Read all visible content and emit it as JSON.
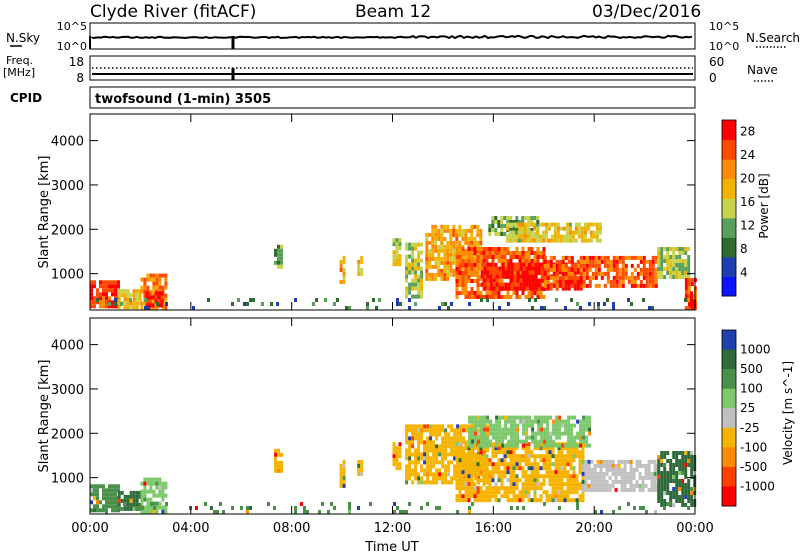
{
  "header": {
    "site": "Clyde River (fitACF)",
    "beam": "Beam 12",
    "date": "03/Dec/2016"
  },
  "status_panels": {
    "nsky_label": "N.Sky",
    "nsky_ticks": [
      "10^5",
      "10^0"
    ],
    "nsearch_label": "N.Search",
    "nsearch_ticks": [
      "10^5",
      "10^0"
    ],
    "freq_label_top": "Freq.",
    "freq_label_unit": "[MHz]",
    "freq_ticks": [
      "18",
      "8"
    ],
    "nave_label": "Nave",
    "nave_ticks": [
      "60",
      "0"
    ],
    "cpid_label": "CPID",
    "cpid_text": "twofsound (1-min) 3505"
  },
  "colors": {
    "power": [
      "#0a14ff",
      "#1f3fb0",
      "#2e6b2e",
      "#5aa05a",
      "#c8d24a",
      "#f0b400",
      "#ff8c00",
      "#ff4a00",
      "#ff0000"
    ],
    "velocity": [
      "#2040b0",
      "#2f6a3a",
      "#4a8f4a",
      "#7cc86a",
      "#c0c0c0",
      "#f6b300",
      "#ff8a00",
      "#ff4000",
      "#ff0000"
    ]
  },
  "chart_data": [
    {
      "type": "heatmap",
      "name": "power",
      "ylabel": "Slant Range [km]",
      "yticks": [
        "1000",
        "2000",
        "3000",
        "4000"
      ],
      "ylim": [
        180,
        4600
      ],
      "xlim": [
        0,
        24
      ],
      "xtick_hours": [
        0,
        4,
        8,
        12,
        16,
        20,
        24
      ],
      "colorbar_label": "Power [dB]",
      "colorbar_ticks": [
        "4",
        "8",
        "12",
        "16",
        "20",
        "24",
        "28"
      ],
      "colorbar_range": [
        0,
        30
      ],
      "regions": [
        {
          "t0": 0.0,
          "t1": 1.1,
          "r0": 250,
          "r1": 850,
          "level": 26
        },
        {
          "t0": 1.1,
          "t1": 2.0,
          "r0": 250,
          "r1": 650,
          "level": 18
        },
        {
          "t0": 2.0,
          "t1": 3.0,
          "r0": 250,
          "r1": 1000,
          "level": 22
        },
        {
          "t0": 2.2,
          "t1": 2.9,
          "r0": 260,
          "r1": 600,
          "level": 29
        },
        {
          "t0": 7.3,
          "t1": 7.6,
          "r0": 1150,
          "r1": 1650,
          "level": 12
        },
        {
          "t0": 9.9,
          "t1": 10.05,
          "r0": 800,
          "r1": 1400,
          "level": 20
        },
        {
          "t0": 10.6,
          "t1": 10.8,
          "r0": 1000,
          "r1": 1400,
          "level": 18
        },
        {
          "t0": 12.0,
          "t1": 12.3,
          "r0": 1200,
          "r1": 1800,
          "level": 16
        },
        {
          "t0": 12.5,
          "t1": 13.2,
          "r0": 500,
          "r1": 1700,
          "level": 14
        },
        {
          "t0": 13.3,
          "t1": 15.5,
          "r0": 900,
          "r1": 2100,
          "level": 20
        },
        {
          "t0": 14.5,
          "t1": 18.0,
          "r0": 500,
          "r1": 1600,
          "level": 24
        },
        {
          "t0": 15.5,
          "t1": 19.5,
          "r0": 650,
          "r1": 1250,
          "level": 28
        },
        {
          "t0": 18.0,
          "t1": 22.5,
          "r0": 700,
          "r1": 1400,
          "level": 24
        },
        {
          "t0": 22.5,
          "t1": 23.8,
          "r0": 900,
          "r1": 1600,
          "level": 14
        },
        {
          "t0": 15.8,
          "t1": 17.8,
          "r0": 1900,
          "r1": 2300,
          "level": 12
        },
        {
          "t0": 16.5,
          "t1": 20.2,
          "r0": 1750,
          "r1": 2150,
          "level": 17
        },
        {
          "t0": 23.6,
          "t1": 24.0,
          "r0": 250,
          "r1": 900,
          "level": 24
        },
        {
          "t0": 23.8,
          "t1": 24.0,
          "r0": 250,
          "r1": 600,
          "level": 29
        }
      ],
      "ground_band": {
        "t0": 0.0,
        "t1": 24.0,
        "r0": 200,
        "r1": 450,
        "level": 8
      }
    },
    {
      "type": "heatmap",
      "name": "velocity",
      "ylabel": "Slant Range [km]",
      "yticks": [
        "1000",
        "2000",
        "3000",
        "4000"
      ],
      "ylim": [
        180,
        4600
      ],
      "xlim": [
        0,
        24
      ],
      "xtick_hours": [
        0,
        4,
        8,
        12,
        16,
        20,
        24
      ],
      "xtick_labels": [
        "00:00",
        "04:00",
        "08:00",
        "12:00",
        "16:00",
        "20:00",
        "00:00"
      ],
      "xlabel": "Time UT",
      "colorbar_label": "Velocity [m s^-1]",
      "colorbar_ticks": [
        "1000",
        "500",
        "100",
        "25",
        "-25",
        "-100",
        "-500",
        "-1000"
      ],
      "regions": [
        {
          "t0": 0.0,
          "t1": 1.1,
          "r0": 250,
          "r1": 850,
          "v": "100"
        },
        {
          "t0": 1.1,
          "t1": 2.0,
          "r0": 250,
          "r1": 700,
          "v": "500"
        },
        {
          "t0": 2.0,
          "t1": 3.0,
          "r0": 250,
          "r1": 1000,
          "v": "25"
        },
        {
          "t0": 7.3,
          "t1": 7.6,
          "r0": 1150,
          "r1": 1650,
          "v": "-100"
        },
        {
          "t0": 9.9,
          "t1": 10.05,
          "r0": 800,
          "r1": 1400,
          "v": "-100"
        },
        {
          "t0": 10.6,
          "t1": 10.8,
          "r0": 1000,
          "r1": 1400,
          "v": "-100"
        },
        {
          "t0": 12.0,
          "t1": 12.3,
          "r0": 1200,
          "r1": 1800,
          "v": "-100"
        },
        {
          "t0": 12.5,
          "t1": 15.8,
          "r0": 900,
          "r1": 2200,
          "v": "-100"
        },
        {
          "t0": 14.5,
          "t1": 19.5,
          "r0": 500,
          "r1": 1800,
          "v": "-100"
        },
        {
          "t0": 19.5,
          "t1": 22.5,
          "r0": 700,
          "r1": 1400,
          "v": "-25"
        },
        {
          "t0": 15.0,
          "t1": 19.8,
          "r0": 1700,
          "r1": 2400,
          "v": "25"
        },
        {
          "t0": 22.5,
          "t1": 24.0,
          "r0": 400,
          "r1": 1600,
          "v": "500"
        }
      ],
      "ground_band": {
        "t0": 0.0,
        "t1": 24.0,
        "r0": 200,
        "r1": 450,
        "v": "100"
      }
    }
  ]
}
